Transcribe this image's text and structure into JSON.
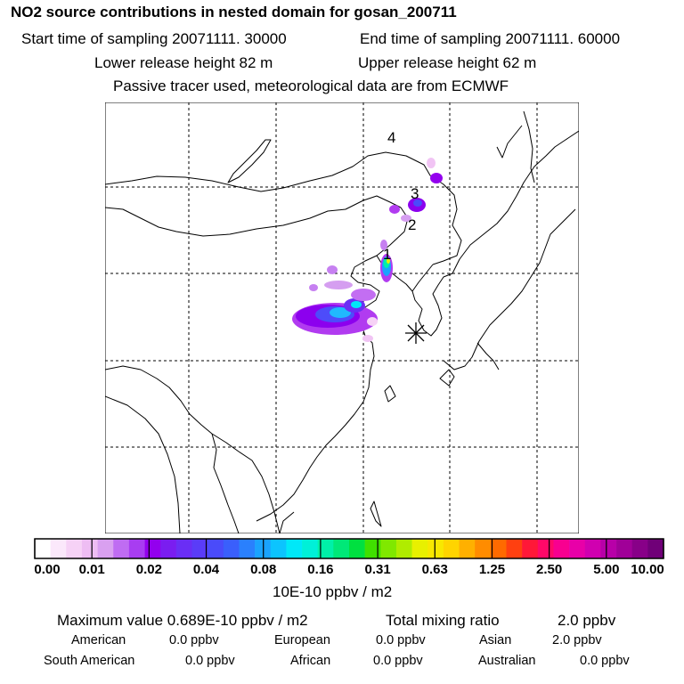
{
  "title": "NO2 source contributions in nested domain for gosan_200711",
  "start_label": "Start time of sampling 20071111. 30000",
  "end_label": "End time of sampling 20071111. 60000",
  "lower_label": "Lower release height   82 m",
  "upper_label": "Upper release height   62 m",
  "tracer_label": "Passive tracer used, meteorological data are from ECMWF",
  "map": {
    "markers": [
      "1",
      "2",
      "3",
      "4"
    ],
    "receptor_symbol": "asterisk"
  },
  "colorbar": {
    "ticks": [
      "0.00",
      "0.01",
      "0.02",
      "0.04",
      "0.08",
      "0.16",
      "0.31",
      "0.63",
      "1.25",
      "2.50",
      "5.00",
      "10.00"
    ],
    "unit": "10E-10 ppbv / m2",
    "colors": [
      "#ffffff",
      "#fbe8fb",
      "#f6d2f6",
      "#eebdf3",
      "#d9a0f0",
      "#bf6cf2",
      "#a83df1",
      "#9300ee",
      "#7a1df0",
      "#6a2ef5",
      "#5a3cf8",
      "#4a4bfa",
      "#3a5ffc",
      "#2a80fd",
      "#1aa3fe",
      "#0cc4fe",
      "#00e8f8",
      "#00f0d8",
      "#00f0a8",
      "#00e878",
      "#00e040",
      "#40e000",
      "#80e800",
      "#b0ec00",
      "#e8f000",
      "#f8e800",
      "#ffd400",
      "#ffb000",
      "#ff8c00",
      "#ff6a00",
      "#ff4010",
      "#ff1838",
      "#ff0868",
      "#f80090",
      "#e800a8",
      "#d000b0",
      "#b800a8",
      "#a00098",
      "#880088",
      "#700078"
    ]
  },
  "summary": {
    "max_label": "Maximum value  0.689E-10 ppbv / m2",
    "total_label": "Total mixing ratio",
    "total_value": "2.0 ppbv"
  },
  "regions": [
    {
      "name": "American",
      "value": "0.0 ppbv"
    },
    {
      "name": "European",
      "value": "0.0 ppbv"
    },
    {
      "name": "Asian",
      "value": "2.0 ppbv"
    },
    {
      "name": "South American",
      "value": "0.0 ppbv"
    },
    {
      "name": "African",
      "value": "0.0 ppbv"
    },
    {
      "name": "Australian",
      "value": "0.0 ppbv"
    }
  ]
}
